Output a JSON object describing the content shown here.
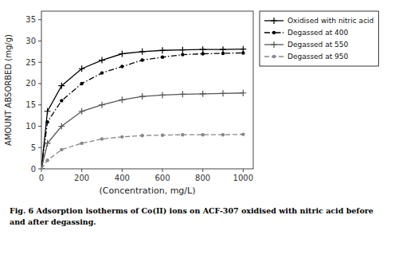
{
  "chart_data": {
    "type": "line",
    "x_label": "(Concentration, mg/L)",
    "y_label": "AMOUNT ABSORBED (mg/g)",
    "caption": "Fig. 6 Adsorption isotherms of Co(II) ions on ACF-307 oxidised with nitric acid before\nand after degassing.",
    "xlim": [
      0,
      1050
    ],
    "ylim": [
      0,
      37
    ],
    "xticks": [
      0,
      200,
      400,
      600,
      800,
      1000
    ],
    "yticks": [
      0,
      5,
      10,
      15,
      20,
      25,
      30,
      35
    ],
    "grid": false,
    "legend": "right",
    "x": [
      0,
      30,
      100,
      200,
      300,
      400,
      500,
      600,
      700,
      800,
      900,
      1000
    ],
    "series": [
      {
        "name": "Oxidised with nitric acid",
        "color": "#000000",
        "line_style": "solid",
        "marker": "plus",
        "values": [
          0,
          13.5,
          19.5,
          23.5,
          25.5,
          27.0,
          27.5,
          27.8,
          27.9,
          28.0,
          28.0,
          28.1
        ]
      },
      {
        "name": "Degassed at 400",
        "color": "#000000",
        "line_style": "dashdot",
        "marker": "point",
        "values": [
          0,
          11.0,
          16.0,
          20.0,
          22.5,
          24.0,
          25.5,
          26.2,
          26.8,
          27.0,
          27.1,
          27.2
        ]
      },
      {
        "name": "Degassed at 550",
        "color": "#555555",
        "line_style": "solid",
        "marker": "plus",
        "values": [
          0,
          6.0,
          10.0,
          13.5,
          15.0,
          16.2,
          17.0,
          17.3,
          17.5,
          17.6,
          17.7,
          17.8
        ]
      },
      {
        "name": "Degassed at 950",
        "color": "#888888",
        "line_style": "dashed",
        "marker": "point",
        "values": [
          0,
          2.0,
          4.5,
          6.0,
          7.0,
          7.5,
          7.8,
          7.9,
          8.0,
          8.0,
          8.0,
          8.1
        ]
      }
    ]
  }
}
